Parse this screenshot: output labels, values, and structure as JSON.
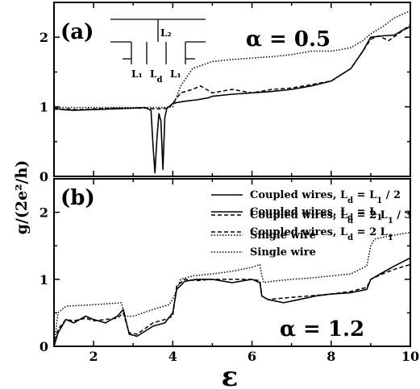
{
  "figure": {
    "ylabel": "g/(2e²/h)",
    "xlabel": "ε"
  },
  "chart_data": [
    {
      "type": "line",
      "panel_label": "(a)",
      "annotation": "α = 0.5",
      "xlim": [
        1,
        10
      ],
      "ylim": [
        0,
        2.5
      ],
      "xticks": [
        2,
        4,
        6,
        8,
        10
      ],
      "yticks": [
        0,
        1,
        2
      ],
      "inset": {
        "labels": [
          "L₂",
          "L₁",
          "L_d",
          "L₁"
        ]
      },
      "series": [
        {
          "name": "Coupled wires, L_d = L_1",
          "style": "solid",
          "x": [
            1.0,
            1.05,
            1.2,
            1.5,
            2.0,
            2.5,
            3.0,
            3.3,
            3.45,
            3.5,
            3.55,
            3.6,
            3.65,
            3.7,
            3.75,
            3.8,
            3.85,
            3.9,
            4.0,
            4.3,
            4.6,
            4.9,
            5.0,
            5.5,
            6.0,
            6.5,
            7.0,
            7.5,
            8.0,
            8.5,
            8.8,
            9.0,
            9.3,
            9.6,
            9.8,
            10.0
          ],
          "y": [
            0.95,
            0.98,
            0.96,
            0.95,
            0.96,
            0.97,
            0.98,
            0.99,
            0.95,
            0.45,
            0.05,
            0.55,
            0.9,
            0.8,
            0.1,
            0.85,
            0.98,
            1.0,
            1.05,
            1.08,
            1.1,
            1.13,
            1.15,
            1.18,
            1.2,
            1.22,
            1.25,
            1.3,
            1.37,
            1.55,
            1.8,
            2.0,
            2.02,
            2.03,
            2.1,
            2.15
          ]
        },
        {
          "name": "Coupled wires, L_d = 2 L_1",
          "style": "dashed",
          "x": [
            1.0,
            1.1,
            1.3,
            1.6,
            2.0,
            2.5,
            3.0,
            3.3,
            3.6,
            3.9,
            4.0,
            4.2,
            4.5,
            4.7,
            5.0,
            5.5,
            6.0,
            6.5,
            7.0,
            7.5,
            8.0,
            8.5,
            8.8,
            9.0,
            9.2,
            9.45,
            9.7,
            10.0
          ],
          "y": [
            0.98,
            0.96,
            0.97,
            0.96,
            0.97,
            0.98,
            0.98,
            0.98,
            0.97,
            0.98,
            1.05,
            1.2,
            1.25,
            1.3,
            1.2,
            1.25,
            1.2,
            1.25,
            1.27,
            1.32,
            1.37,
            1.55,
            1.8,
            1.97,
            2.02,
            1.95,
            2.05,
            2.18
          ]
        },
        {
          "name": "Single wire",
          "style": "dotted",
          "x": [
            1.0,
            1.2,
            1.5,
            2.0,
            2.5,
            3.0,
            3.5,
            3.8,
            3.95,
            4.0,
            4.2,
            4.5,
            5.0,
            5.5,
            6.0,
            6.5,
            7.0,
            7.5,
            7.9,
            8.0,
            8.5,
            8.8,
            9.0,
            9.3,
            9.6,
            10.0
          ],
          "y": [
            0.99,
            0.99,
            0.99,
            0.99,
            0.99,
            0.99,
            0.99,
            0.99,
            1.0,
            1.0,
            1.3,
            1.55,
            1.65,
            1.68,
            1.7,
            1.72,
            1.75,
            1.8,
            1.8,
            1.8,
            1.85,
            1.95,
            2.05,
            2.15,
            2.28,
            2.38
          ]
        }
      ]
    },
    {
      "type": "line",
      "panel_label": "(b)",
      "annotation": "α = 1.2",
      "xlim": [
        1,
        10
      ],
      "ylim": [
        0,
        2.5
      ],
      "xticks": [
        2,
        4,
        6,
        8,
        10
      ],
      "xtick_labels": [
        "2",
        "4",
        "6",
        "8",
        "10"
      ],
      "yticks": [
        0,
        1,
        2
      ],
      "series": [
        {
          "name": "Coupled wires, L_d = L_1 / 2",
          "style": "solid",
          "x": [
            1.0,
            1.1,
            1.3,
            1.5,
            1.8,
            2.0,
            2.3,
            2.6,
            2.75,
            2.9,
            3.1,
            3.5,
            3.8,
            4.0,
            4.1,
            4.3,
            4.6,
            5.0,
            5.5,
            6.0,
            6.2,
            6.25,
            6.4,
            6.8,
            7.2,
            7.6,
            8.0,
            8.5,
            8.9,
            9.0,
            9.3,
            9.6,
            10.0
          ],
          "y": [
            0.0,
            0.2,
            0.4,
            0.35,
            0.45,
            0.4,
            0.35,
            0.45,
            0.55,
            0.18,
            0.15,
            0.3,
            0.35,
            0.5,
            0.85,
            0.97,
            1.0,
            1.0,
            0.95,
            1.0,
            0.95,
            0.75,
            0.7,
            0.65,
            0.7,
            0.75,
            0.78,
            0.8,
            0.85,
            1.0,
            1.1,
            1.2,
            1.32
          ]
        },
        {
          "name": "Coupled wires, L_d = 2 L_1 / 3",
          "style": "dashed",
          "x": [
            1.0,
            1.1,
            1.3,
            1.5,
            1.8,
            2.0,
            2.3,
            2.6,
            2.75,
            2.9,
            3.1,
            3.5,
            3.8,
            4.0,
            4.1,
            4.3,
            4.6,
            5.0,
            5.5,
            6.0,
            6.2,
            6.25,
            6.4,
            6.8,
            7.2,
            7.6,
            8.0,
            8.5,
            8.9,
            9.0,
            9.3,
            9.6,
            10.0
          ],
          "y": [
            0.0,
            0.25,
            0.4,
            0.38,
            0.42,
            0.38,
            0.4,
            0.42,
            0.5,
            0.2,
            0.18,
            0.35,
            0.4,
            0.45,
            0.9,
            1.0,
            0.98,
            1.0,
            1.0,
            1.0,
            0.98,
            0.75,
            0.7,
            0.72,
            0.74,
            0.76,
            0.78,
            0.82,
            0.88,
            1.0,
            1.08,
            1.15,
            1.22
          ]
        },
        {
          "name": "Single wire",
          "style": "dotted",
          "x": [
            1.0,
            1.1,
            1.3,
            2.0,
            2.7,
            2.75,
            2.8,
            3.0,
            3.5,
            3.9,
            4.0,
            4.2,
            4.5,
            5.0,
            5.5,
            6.0,
            6.2,
            6.25,
            6.3,
            6.5,
            7.0,
            7.5,
            8.0,
            8.5,
            8.9,
            9.0,
            9.1,
            9.5,
            10.0
          ],
          "y": [
            0.0,
            0.5,
            0.6,
            0.62,
            0.65,
            0.55,
            0.45,
            0.45,
            0.55,
            0.62,
            0.7,
            1.0,
            1.05,
            1.08,
            1.12,
            1.18,
            1.22,
            1.05,
            0.95,
            0.97,
            1.0,
            1.02,
            1.05,
            1.08,
            1.2,
            1.5,
            1.6,
            1.65,
            1.7
          ]
        }
      ]
    }
  ]
}
